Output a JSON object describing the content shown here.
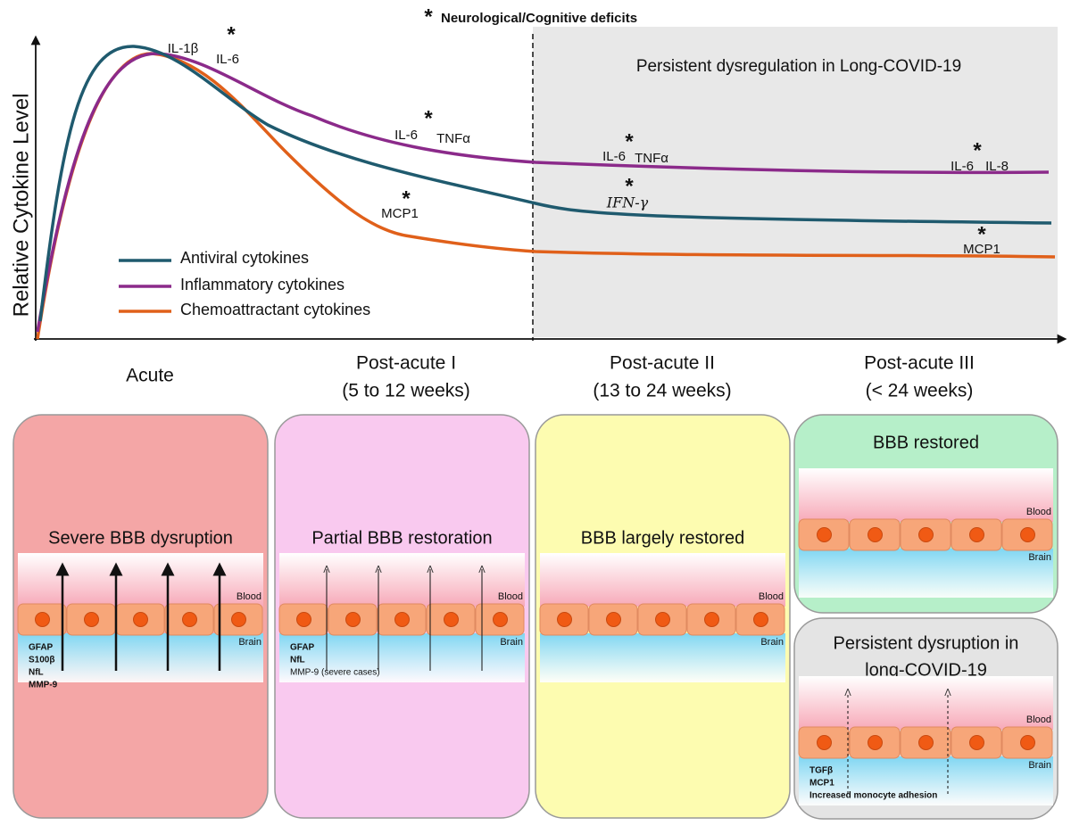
{
  "y_axis_label": "Relative Cytokine Level",
  "marker": "*",
  "note": "Neurological/Cognitive deficits",
  "region_label": "Persistent dysregulation in Long-COVID-19",
  "legend": [
    "Antiviral cytokines",
    "Inflammatory cytokines",
    "Chemoattractant cytokines"
  ],
  "curve_labels": [
    "IL-1β",
    "IL-6",
    "IL-6",
    "TNFα",
    "MCP1",
    "IL-6",
    "TNFα",
    "IFN-γ",
    "IL-6",
    "IL-8",
    "MCP1"
  ],
  "phases": [
    {
      "name": "Acute"
    },
    {
      "name": "Post-acute I",
      "range": "(5 to 12 weeks)"
    },
    {
      "name": "Post-acute II",
      "range": "(13 to 24 weeks)"
    },
    {
      "name": "Post-acute III",
      "range": "(< 24 weeks)"
    }
  ],
  "barrier": {
    "blood": "Blood",
    "brain": "Brain"
  },
  "panels": [
    {
      "title": [
        "Severe BBB dysruption"
      ],
      "markers": [
        "GFAP",
        "S100β",
        "NfL",
        "MMP-9"
      ]
    },
    {
      "title": [
        "Partial BBB restoration"
      ],
      "markers": [
        "GFAP",
        "NfL",
        "MMP-9 (severe cases)"
      ]
    },
    {
      "title": [
        "BBB largely restored"
      ],
      "markers": []
    },
    {
      "title": [
        "BBB restored"
      ],
      "markers": []
    },
    {
      "title": [
        "Persistent dysruption in",
        "long-COVID-19"
      ],
      "markers": [
        "TGFβ",
        "MCP1",
        "Increased monocyte adhesion"
      ]
    }
  ]
}
